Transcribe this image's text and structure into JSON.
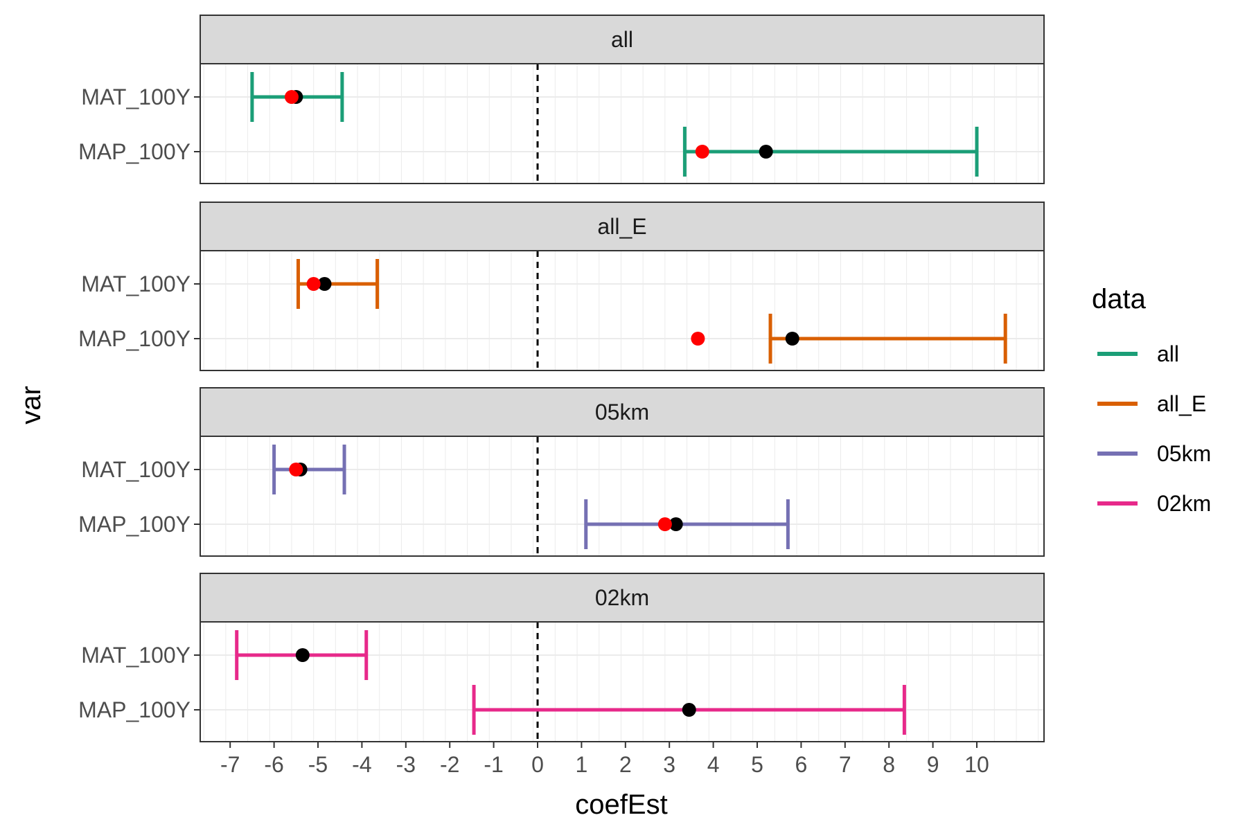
{
  "chart_data": {
    "type": "errorbar",
    "xlabel": "coefEst",
    "ylabel": "var",
    "xlim": [
      -7.6,
      11.7
    ],
    "x_ticks": [
      -7,
      -6,
      -5,
      -4,
      -3,
      -2,
      -1,
      0,
      1,
      2,
      3,
      4,
      5,
      6,
      7,
      8,
      9,
      10
    ],
    "x_tick_labels": [
      "-7",
      "-6",
      "-5",
      "-4",
      "-3",
      "-2",
      "-1",
      "0",
      "1",
      "2",
      "3",
      "4",
      "5",
      "6",
      "7",
      "8",
      "9",
      "10"
    ],
    "categories": [
      "MAT_100Y",
      "MAP_100Y"
    ],
    "reference_line": {
      "x": 0,
      "style": "dashed",
      "color": "#000000"
    },
    "grid": true,
    "legend": {
      "title": "data",
      "placement": "right",
      "entries": [
        {
          "label": "all",
          "color": "#1b9e77"
        },
        {
          "label": "all_E",
          "color": "#d95f02"
        },
        {
          "label": "05km",
          "color": "#7570b3"
        },
        {
          "label": "02km",
          "color": "#e7298a"
        }
      ]
    },
    "panels": [
      {
        "strip": "all",
        "color": "#1b9e77",
        "rows": [
          {
            "var": "MAT_100Y",
            "lower": -6.5,
            "upper": -4.45,
            "estimate": -5.5,
            "red_point": -5.6
          },
          {
            "var": "MAP_100Y",
            "lower": 3.35,
            "upper": 10.0,
            "estimate": 5.2,
            "red_point": 3.75
          }
        ]
      },
      {
        "strip": "all_E",
        "color": "#d95f02",
        "rows": [
          {
            "var": "MAT_100Y",
            "lower": -5.45,
            "upper": -3.65,
            "estimate": -4.85,
            "red_point": -5.1
          },
          {
            "var": "MAP_100Y",
            "lower": 5.3,
            "upper": 10.65,
            "estimate": 5.8,
            "red_point": 3.65
          }
        ]
      },
      {
        "strip": "05km",
        "color": "#7570b3",
        "rows": [
          {
            "var": "MAT_100Y",
            "lower": -6.0,
            "upper": -4.4,
            "estimate": -5.4,
            "red_point": -5.5
          },
          {
            "var": "MAP_100Y",
            "lower": 1.1,
            "upper": 5.7,
            "estimate": 3.15,
            "red_point": 2.9
          }
        ]
      },
      {
        "strip": "02km",
        "color": "#e7298a",
        "rows": [
          {
            "var": "MAT_100Y",
            "lower": -6.85,
            "upper": -3.9,
            "estimate": -5.35,
            "red_point": null
          },
          {
            "var": "MAP_100Y",
            "lower": -1.45,
            "upper": 8.35,
            "estimate": 3.45,
            "red_point": null
          }
        ]
      }
    ]
  }
}
